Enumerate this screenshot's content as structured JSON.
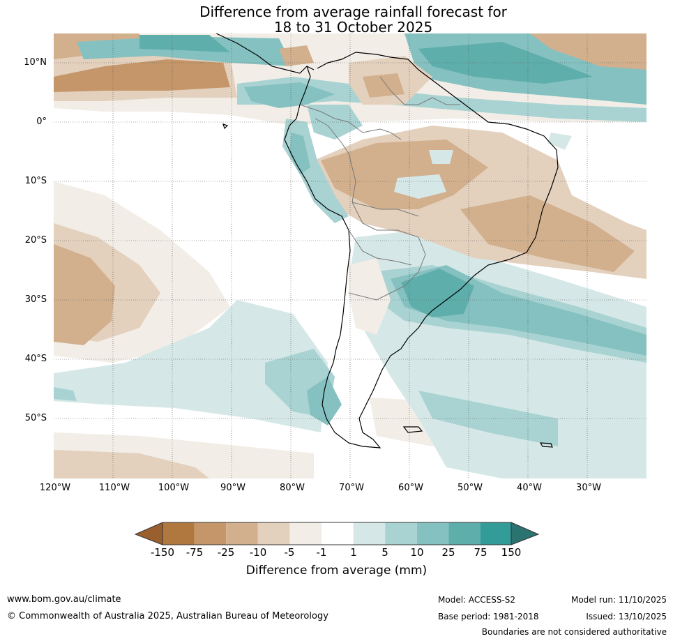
{
  "title": {
    "line1": "Difference from average rainfall forecast for",
    "line2": "18 to 31 October 2025"
  },
  "axes": {
    "latitude_labels": [
      "10°N",
      "0°",
      "10°S",
      "20°S",
      "30°S",
      "40°S",
      "50°S"
    ],
    "longitude_labels": [
      "120°W",
      "110°W",
      "100°W",
      "90°W",
      "80°W",
      "70°W",
      "60°W",
      "50°W",
      "40°W",
      "30°W"
    ]
  },
  "legend": {
    "title": "Difference from average (mm)",
    "ticks": [
      "-150",
      "-75",
      "-25",
      "-10",
      "-5",
      "-1",
      "1",
      "5",
      "10",
      "25",
      "75",
      "150"
    ],
    "colors": [
      "#9a5f2e",
      "#b0773e",
      "#c49669",
      "#d2b08d",
      "#e3d0bd",
      "#f2ede7",
      "#ffffff",
      "#d5e8e7",
      "#a9d3d2",
      "#84c1c0",
      "#5eaeac",
      "#339b98",
      "#2a7370"
    ]
  },
  "footer": {
    "website": "www.bom.gov.au/climate",
    "copyright": "© Commonwealth of Australia 2025, Australian Bureau of Meteorology",
    "model": "Model: ACCESS-S2",
    "base_period": "Base period: 1981-2018",
    "model_run": "Model run: 11/10/2025",
    "issued": "Issued: 13/10/2025",
    "disclaimer": "Boundaries are not considered authoritative"
  }
}
